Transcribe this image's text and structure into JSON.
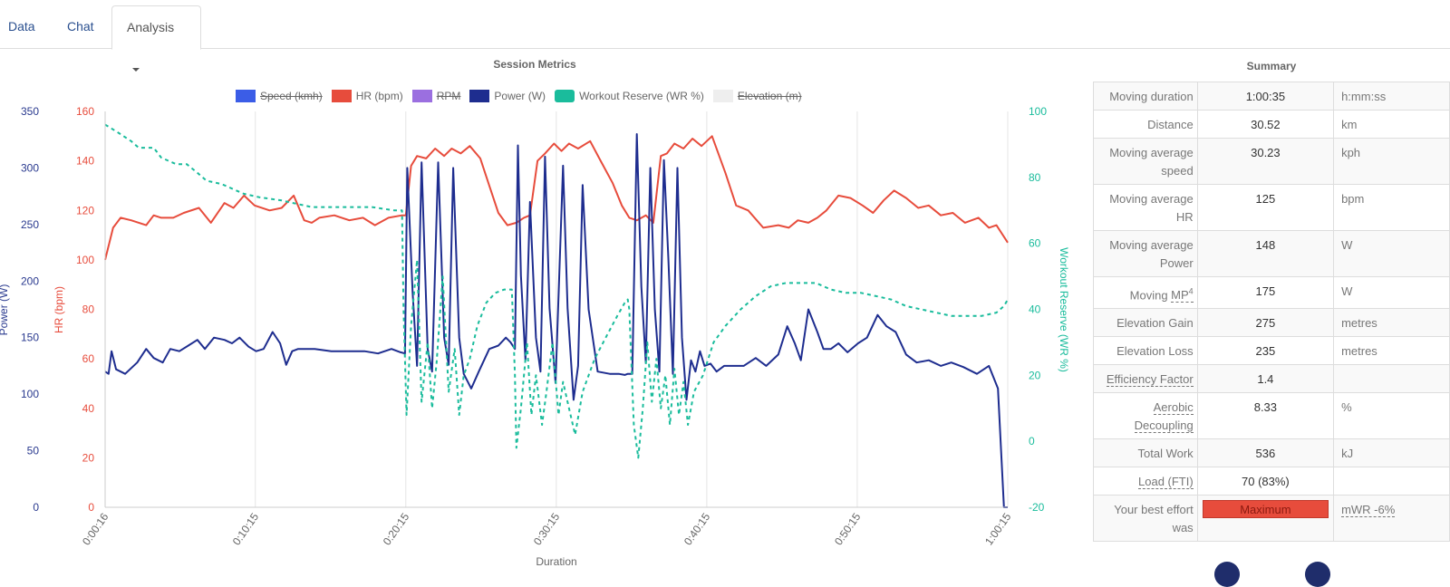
{
  "tabs": [
    {
      "label": "Data",
      "active": false
    },
    {
      "label": "Chat",
      "active": false
    },
    {
      "label": "Analysis",
      "active": true,
      "dropdown": true
    }
  ],
  "colors": {
    "speed": "#3b5de7",
    "hr": "#e74c3c",
    "rpm": "#9b6fe0",
    "power": "#1e2d8f",
    "wr": "#1abc9c",
    "elevation": "#eeeeee",
    "grid": "#e5e5e5"
  },
  "chart_data": {
    "type": "line",
    "title": "Session Metrics",
    "xlabel": "Duration",
    "x_unit": "minutes",
    "x_ticks": [
      "0:00:16",
      "0:10:15",
      "0:20:15",
      "0:30:15",
      "0:40:15",
      "0:50:15",
      "1:00:15"
    ],
    "x_tick_values": [
      0.27,
      10.25,
      20.25,
      30.25,
      40.25,
      50.25,
      60.25
    ],
    "xlim": [
      0.27,
      60.25
    ],
    "axes": {
      "power": {
        "label": "Power (W)",
        "ylim": [
          0,
          350
        ],
        "ticks": [
          "0",
          "50",
          "100",
          "150",
          "200",
          "250",
          "300",
          "350"
        ],
        "side": "left-outer"
      },
      "hr": {
        "label": "HR (bpm)",
        "ylim": [
          0,
          160
        ],
        "ticks": [
          "0",
          "20",
          "40",
          "60",
          "80",
          "100",
          "120",
          "140",
          "160"
        ],
        "side": "left-inner"
      },
      "wr": {
        "label": "Workout Reserve (WR %)",
        "ylim": [
          -20,
          100
        ],
        "ticks": [
          "-20",
          "0",
          "20",
          "40",
          "60",
          "80",
          "100"
        ],
        "side": "right"
      }
    },
    "legend": [
      {
        "name": "Speed (kmh)",
        "color_key": "speed",
        "hidden": true
      },
      {
        "name": "HR (bpm)",
        "color_key": "hr",
        "hidden": false
      },
      {
        "name": "RPM",
        "color_key": "rpm",
        "hidden": true
      },
      {
        "name": "Power (W)",
        "color_key": "power",
        "hidden": false
      },
      {
        "name": "Workout Reserve (WR %)",
        "color_key": "wr",
        "hidden": false,
        "dashed": true
      },
      {
        "name": "Elevation (m)",
        "color_key": "elevation",
        "hidden": true
      }
    ],
    "legend_position": "top-center",
    "series": [
      {
        "name": "HR (bpm)",
        "axis": "hr",
        "color_key": "hr",
        "x": [
          0.27,
          0.8,
          1.3,
          2.0,
          3.0,
          3.5,
          4.0,
          4.8,
          5.5,
          6.5,
          7.3,
          8.2,
          8.8,
          9.5,
          10.2,
          11.2,
          12.0,
          12.8,
          13.5,
          14.0,
          14.5,
          15.5,
          16.5,
          17.4,
          18.2,
          19.1,
          20.0,
          20.25,
          20.6,
          21.0,
          21.6,
          22.2,
          22.8,
          23.3,
          23.9,
          24.5,
          25.2,
          25.8,
          26.4,
          27.0,
          27.6,
          28.1,
          28.5,
          29.0,
          29.5,
          30.1,
          30.6,
          31.1,
          31.7,
          32.5,
          33.2,
          34.0,
          34.6,
          35.1,
          35.6,
          36.2,
          36.7,
          37.2,
          37.6,
          38.1,
          38.7,
          39.3,
          39.9,
          40.6,
          41.5,
          42.2,
          43.0,
          44.0,
          45.0,
          45.7,
          46.3,
          47.0,
          47.6,
          48.2,
          49.0,
          49.8,
          50.6,
          51.3,
          52.0,
          52.7,
          53.5,
          54.3,
          55.0,
          55.8,
          56.6,
          57.4,
          58.3,
          59.0,
          59.5,
          60.25
        ],
        "y": [
          100,
          113,
          117,
          116,
          114,
          118,
          117,
          117,
          119,
          121,
          115,
          123,
          121,
          126,
          122,
          120,
          121,
          126,
          116,
          115,
          117,
          118,
          116,
          117,
          114,
          117,
          118,
          118,
          138,
          142,
          141,
          145,
          142,
          145,
          143,
          146,
          141,
          130,
          119,
          114,
          115,
          117,
          118,
          140,
          143,
          147,
          144,
          147,
          145,
          148,
          140,
          131,
          122,
          117,
          116,
          118,
          115,
          142,
          143,
          147,
          145,
          149,
          146,
          150,
          135,
          122,
          120,
          113,
          114,
          113,
          116,
          115,
          117,
          120,
          126,
          125,
          122,
          119,
          124,
          128,
          125,
          121,
          122,
          118,
          119,
          115,
          117,
          113,
          114,
          107
        ]
      },
      {
        "name": "Power (W)",
        "axis": "power",
        "color_key": "power",
        "x": [
          0.27,
          0.5,
          0.7,
          1.0,
          1.6,
          2.4,
          3.0,
          3.5,
          4.1,
          4.6,
          5.2,
          5.8,
          6.4,
          6.9,
          7.5,
          8.2,
          8.7,
          9.2,
          9.8,
          10.3,
          10.8,
          11.4,
          11.9,
          12.3,
          12.7,
          13.1,
          14.2,
          15.3,
          16.4,
          17.5,
          18.4,
          19.3,
          19.9,
          20.2,
          20.35,
          20.7,
          21.0,
          21.3,
          21.7,
          22.0,
          22.4,
          22.8,
          23.1,
          23.4,
          23.8,
          24.1,
          24.6,
          25.1,
          25.8,
          26.4,
          26.9,
          27.2,
          27.5,
          27.7,
          27.9,
          28.2,
          28.5,
          28.9,
          29.2,
          29.5,
          29.8,
          30.2,
          30.7,
          31.0,
          31.4,
          31.7,
          32.0,
          32.4,
          33.0,
          33.8,
          34.4,
          34.8,
          35.0,
          35.3,
          35.6,
          35.9,
          36.2,
          36.5,
          36.8,
          37.1,
          37.4,
          37.7,
          38.0,
          38.3,
          38.6,
          38.9,
          39.2,
          39.5,
          39.8,
          40.1,
          40.5,
          40.9,
          41.4,
          42.0,
          42.7,
          43.5,
          44.2,
          45.0,
          45.6,
          46.1,
          46.5,
          47.0,
          47.6,
          48.0,
          48.5,
          49.0,
          49.6,
          50.3,
          50.9,
          51.6,
          52.2,
          52.8,
          53.5,
          54.2,
          55.0,
          55.8,
          56.5,
          57.3,
          58.2,
          59.0,
          59.6,
          60.0,
          60.25
        ],
        "y": [
          120,
          118,
          138,
          122,
          118,
          128,
          140,
          132,
          128,
          140,
          138,
          143,
          148,
          140,
          150,
          148,
          145,
          150,
          142,
          138,
          140,
          155,
          145,
          126,
          138,
          140,
          140,
          138,
          138,
          138,
          136,
          140,
          137,
          136,
          300,
          190,
          125,
          305,
          140,
          120,
          305,
          150,
          126,
          300,
          150,
          118,
          105,
          120,
          140,
          143,
          150,
          146,
          140,
          320,
          205,
          130,
          270,
          150,
          120,
          310,
          176,
          110,
          302,
          176,
          95,
          125,
          285,
          175,
          120,
          118,
          118,
          117,
          118,
          118,
          330,
          195,
          128,
          300,
          175,
          120,
          307,
          220,
          118,
          300,
          150,
          95,
          130,
          120,
          138,
          125,
          127,
          120,
          125,
          125,
          125,
          132,
          125,
          135,
          160,
          145,
          130,
          175,
          155,
          140,
          140,
          145,
          137,
          145,
          150,
          170,
          160,
          155,
          135,
          128,
          130,
          125,
          128,
          124,
          118,
          125,
          105,
          0,
          0
        ]
      },
      {
        "name": "Workout Reserve (WR %)",
        "axis": "wr",
        "color_key": "wr",
        "x": [
          0.27,
          1.0,
          2.0,
          2.5,
          3.5,
          4.0,
          5.0,
          5.7,
          6.5,
          7.0,
          8.0,
          9.0,
          9.5,
          10.5,
          12.0,
          13.0,
          14.0,
          15.0,
          16.5,
          18.0,
          19.5,
          20.0,
          20.1,
          20.3,
          20.6,
          21.0,
          21.3,
          21.7,
          22.0,
          22.3,
          22.7,
          23.1,
          23.5,
          23.8,
          24.1,
          24.5,
          25.0,
          25.6,
          26.2,
          26.8,
          27.3,
          27.5,
          27.6,
          27.9,
          28.3,
          28.6,
          28.9,
          29.3,
          29.6,
          30.0,
          30.4,
          30.7,
          31.1,
          31.5,
          32.0,
          32.8,
          33.6,
          34.3,
          34.8,
          35.0,
          35.1,
          35.4,
          35.7,
          36.0,
          36.3,
          36.6,
          36.9,
          37.2,
          37.5,
          37.8,
          38.1,
          38.4,
          38.7,
          39.0,
          39.4,
          40.0,
          40.7,
          41.5,
          42.5,
          43.5,
          44.5,
          45.5,
          46.5,
          47.5,
          48.5,
          49.5,
          50.5,
          51.5,
          52.5,
          53.5,
          54.5,
          55.5,
          56.5,
          57.5,
          58.5,
          59.5,
          60.0,
          60.25
        ],
        "y": [
          96,
          94,
          91,
          89,
          89,
          86,
          84,
          84,
          81,
          79,
          78,
          76,
          75,
          74,
          73,
          72,
          71,
          71,
          71,
          71,
          70,
          70,
          40,
          8,
          35,
          55,
          12,
          30,
          10,
          24,
          50,
          15,
          28,
          8,
          20,
          25,
          35,
          42,
          45,
          46,
          46,
          20,
          -2,
          10,
          30,
          8,
          20,
          5,
          15,
          30,
          8,
          18,
          10,
          2,
          15,
          25,
          32,
          38,
          42,
          43,
          40,
          5,
          -5,
          10,
          30,
          12,
          25,
          10,
          20,
          5,
          22,
          8,
          18,
          5,
          15,
          20,
          30,
          35,
          40,
          44,
          47,
          48,
          48,
          48,
          46,
          45,
          45,
          44,
          43,
          41,
          40,
          39,
          38,
          38,
          38,
          39,
          41,
          43
        ]
      }
    ]
  },
  "summary": {
    "title": "Summary",
    "rows": [
      {
        "label": "Moving duration",
        "value": "1:00:35",
        "unit": "h:mm:ss"
      },
      {
        "label": "Distance",
        "value": "30.52",
        "unit": "km"
      },
      {
        "label": "Moving average speed",
        "value": "30.23",
        "unit": "kph"
      },
      {
        "label": "Moving average HR",
        "value": "125",
        "unit": "bpm"
      },
      {
        "label": "Moving average Power",
        "value": "148",
        "unit": "W"
      },
      {
        "label": "Moving MP",
        "label_sup": "4",
        "label_abbr": "MP",
        "value": "175",
        "unit": "W"
      },
      {
        "label": "Elevation Gain",
        "value": "275",
        "unit": "metres"
      },
      {
        "label": "Elevation Loss",
        "value": "235",
        "unit": "metres"
      },
      {
        "label": "Efficiency Factor",
        "abbr": true,
        "value": "1.4",
        "unit": ""
      },
      {
        "label": "Aerobic Decoupling",
        "abbr": true,
        "value": "8.33",
        "unit": "%"
      },
      {
        "label": "Total Work",
        "value": "536",
        "unit": "kJ"
      },
      {
        "label": "Load (FTI)",
        "abbr": true,
        "value": "70 (83%)",
        "unit": ""
      },
      {
        "label": "Your best effort was",
        "value": "Maximum",
        "value_badge": true,
        "unit": "mWR -6%",
        "unit_abbr": true
      }
    ]
  }
}
